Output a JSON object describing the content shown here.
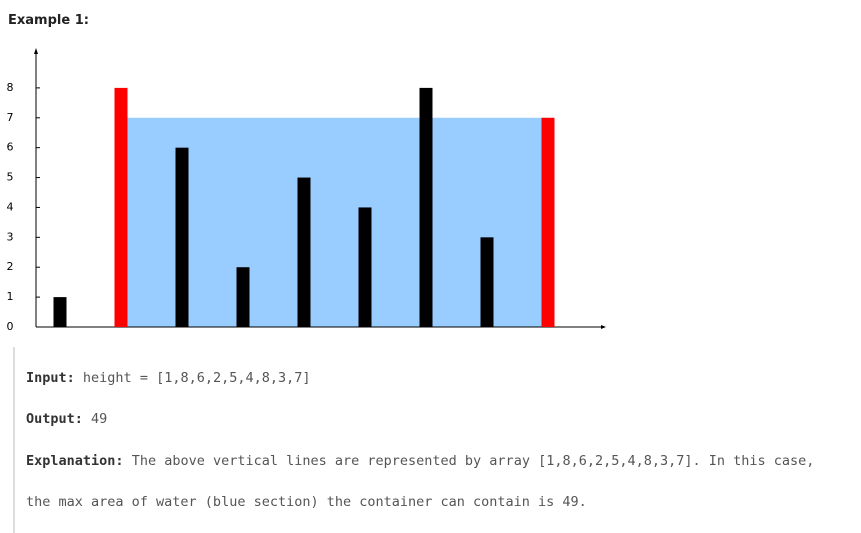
{
  "heading": "Example 1:",
  "chart_data": {
    "type": "bar",
    "values": [
      1,
      8,
      6,
      2,
      5,
      4,
      8,
      3,
      7
    ],
    "colors": [
      "#000000",
      "#ff0000",
      "#000000",
      "#000000",
      "#000000",
      "#000000",
      "#000000",
      "#000000",
      "#ff0000"
    ],
    "water": {
      "level": 7,
      "color": "#99ccff"
    },
    "ylim": [
      0,
      9
    ],
    "yticks": [
      0,
      1,
      2,
      3,
      4,
      5,
      6,
      7,
      8
    ]
  },
  "example": {
    "input_label": "Input:",
    "input": "height = [1,8,6,2,5,4,8,3,7]",
    "output_label": "Output:",
    "output": 49,
    "explanation_label": "Explanation:",
    "explanation": [
      "The above vertical lines are represented by array [1,8,6,2,5,4,8,3,7]. In this case,",
      "the max area of water (blue section) the container can contain is 49."
    ]
  }
}
